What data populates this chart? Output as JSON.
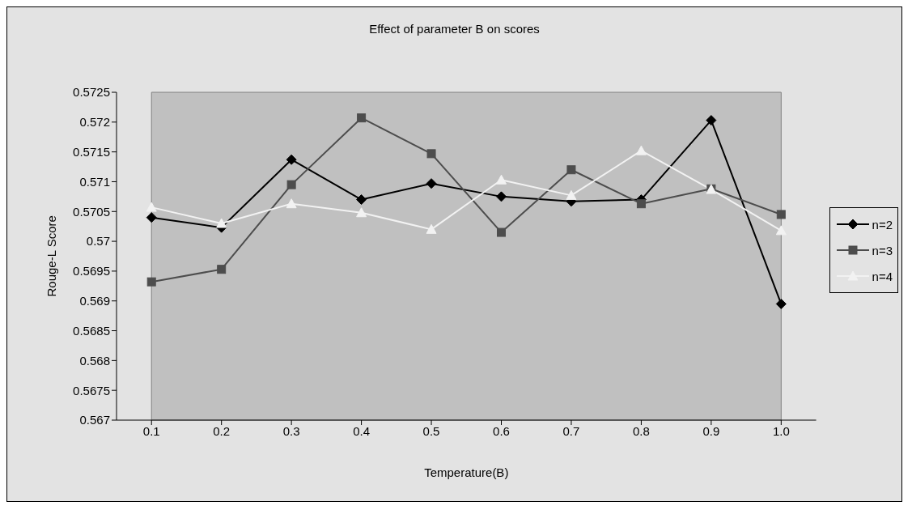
{
  "chart_data": {
    "type": "line",
    "title": "Effect of parameter B on scores",
    "xlabel": "Temperature(B)",
    "ylabel": "Rouge-L Score",
    "categories": [
      "0.1",
      "0.2",
      "0.3",
      "0.4",
      "0.5",
      "0.6",
      "0.7",
      "0.8",
      "0.9",
      "1.0"
    ],
    "series": [
      {
        "name": "n=2",
        "color": "#000000",
        "marker": "diamond",
        "values": [
          0.5704,
          0.57023,
          0.57137,
          0.5707,
          0.57097,
          0.57075,
          0.57067,
          0.5707,
          0.57203,
          0.56895
        ]
      },
      {
        "name": "n=3",
        "color": "#4d4d4d",
        "marker": "square",
        "values": [
          0.56932,
          0.56953,
          0.57095,
          0.57207,
          0.57147,
          0.57015,
          0.5712,
          0.57063,
          0.57088,
          0.57045
        ]
      },
      {
        "name": "n=4",
        "color": "#f2f2f2",
        "marker": "triangle",
        "values": [
          0.57057,
          0.5703,
          0.57063,
          0.57048,
          0.5702,
          0.57103,
          0.57077,
          0.57152,
          0.57087,
          0.57018
        ]
      }
    ],
    "ylim": [
      0.567,
      0.5725
    ],
    "yticks": [
      0.567,
      0.5675,
      0.568,
      0.5685,
      0.569,
      0.5695,
      0.57,
      0.5705,
      0.571,
      0.5715,
      0.572,
      0.5725
    ],
    "grid": false,
    "legend": "right"
  }
}
